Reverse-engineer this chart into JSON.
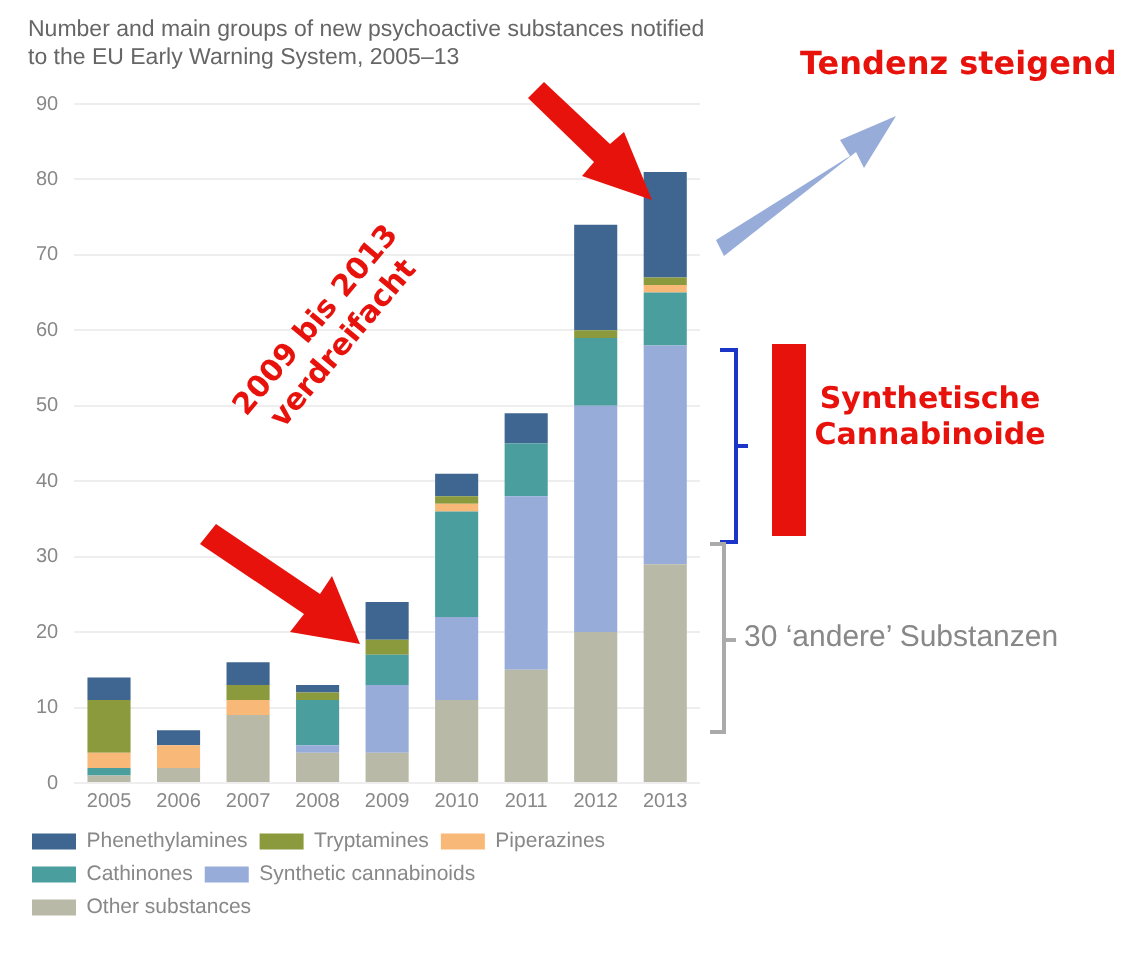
{
  "chart_data": {
    "type": "bar",
    "stacked": true,
    "title": "Number and main groups of new psychoactive substances notified to the EU Early Warning System, 2005–13",
    "categories": [
      "2005",
      "2006",
      "2007",
      "2008",
      "2009",
      "2010",
      "2011",
      "2012",
      "2013"
    ],
    "series": [
      {
        "name": "Other substances",
        "color": "#b9b9a7",
        "values": [
          1,
          2,
          9,
          4,
          4,
          11,
          15,
          20,
          29
        ]
      },
      {
        "name": "Synthetic cannabinoids",
        "color": "#97acd9",
        "values": [
          0,
          0,
          0,
          1,
          9,
          11,
          23,
          30,
          29
        ]
      },
      {
        "name": "Cathinones",
        "color": "#4a9e9e",
        "values": [
          1,
          0,
          0,
          6,
          4,
          14,
          7,
          9,
          7
        ]
      },
      {
        "name": "Piperazines",
        "color": "#f8b878",
        "values": [
          2,
          3,
          2,
          0,
          0,
          1,
          0,
          0,
          1
        ]
      },
      {
        "name": "Tryptamines",
        "color": "#8a9a3c",
        "values": [
          7,
          0,
          2,
          1,
          2,
          1,
          0,
          1,
          1
        ]
      },
      {
        "name": "Phenethylamines",
        "color": "#3f6690",
        "values": [
          3,
          2,
          3,
          1,
          5,
          3,
          4,
          14,
          14
        ]
      }
    ],
    "ylim": [
      0,
      90
    ],
    "yticks": [
      0,
      10,
      20,
      30,
      40,
      50,
      60,
      70,
      80,
      90
    ],
    "grid": "y",
    "legend": "bottom",
    "annotations": [
      "Tendenz steigend",
      "2009 bis 2013 verdreifacht",
      "Synthetische Cannabinoide",
      "30 ‘andere’ Substanzen"
    ]
  }
}
